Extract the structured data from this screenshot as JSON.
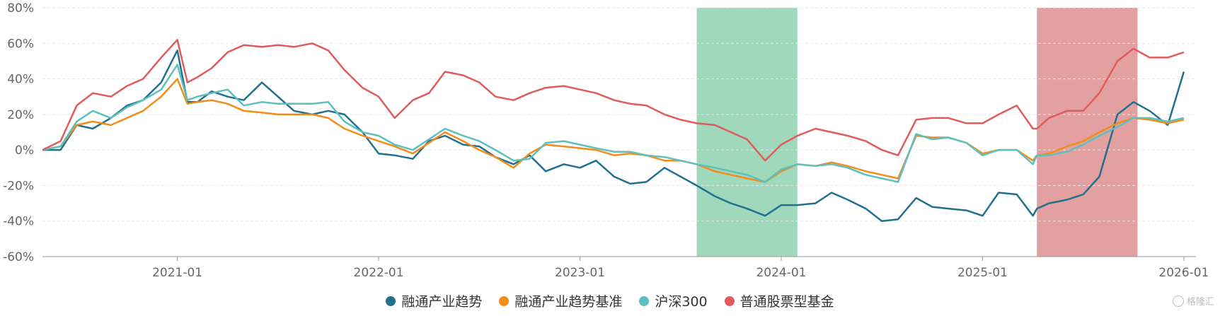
{
  "chart_data": {
    "type": "line",
    "title": "",
    "xlabel": "",
    "ylabel": "",
    "ylim": [
      -60,
      80
    ],
    "yticks": [
      "80%",
      "60%",
      "40%",
      "20%",
      "0%",
      "-20%",
      "-40%",
      "-60%"
    ],
    "ytick_values": [
      80,
      60,
      40,
      20,
      0,
      -20,
      -40,
      -60
    ],
    "xticks": [
      "2021-01",
      "2022-01",
      "2023-01",
      "2024-01",
      "2025-01",
      "2026-01"
    ],
    "xtick_values": [
      2021.0,
      2022.0,
      2023.0,
      2024.0,
      2025.0,
      2026.0
    ],
    "x_range": [
      2020.33,
      2026.06
    ],
    "grid": true,
    "legend_position": "bottom",
    "shaded_regions": [
      {
        "from": 2023.58,
        "to": 2024.08,
        "color": "#8fd1b0"
      },
      {
        "from": 2025.27,
        "to": 2025.77,
        "color": "#de8f8f"
      }
    ],
    "x": [
      2020.33,
      2020.42,
      2020.5,
      2020.58,
      2020.67,
      2020.75,
      2020.83,
      2020.92,
      2021.0,
      2021.05,
      2021.1,
      2021.17,
      2021.25,
      2021.33,
      2021.42,
      2021.5,
      2021.58,
      2021.67,
      2021.75,
      2021.83,
      2021.92,
      2022.0,
      2022.08,
      2022.17,
      2022.25,
      2022.33,
      2022.42,
      2022.5,
      2022.58,
      2022.67,
      2022.75,
      2022.83,
      2022.92,
      2023.0,
      2023.08,
      2023.17,
      2023.25,
      2023.33,
      2023.42,
      2023.5,
      2023.58,
      2023.67,
      2023.75,
      2023.83,
      2023.92,
      2024.0,
      2024.08,
      2024.17,
      2024.25,
      2024.33,
      2024.42,
      2024.5,
      2024.58,
      2024.67,
      2024.75,
      2024.83,
      2024.92,
      2025.0,
      2025.08,
      2025.17,
      2025.25,
      2025.27,
      2025.33,
      2025.42,
      2025.5,
      2025.58,
      2025.67,
      2025.75,
      2025.83,
      2025.92,
      2026.0
    ],
    "series": [
      {
        "name": "融通产业趋势",
        "color": "#22708f",
        "values": [
          0,
          0,
          14,
          12,
          18,
          25,
          28,
          38,
          56,
          27,
          27,
          33,
          30,
          28,
          38,
          30,
          22,
          20,
          22,
          20,
          10,
          -2,
          -3,
          -5,
          5,
          8,
          3,
          2,
          -4,
          -8,
          -3,
          -12,
          -8,
          -10,
          -6,
          -15,
          -19,
          -18,
          -10,
          -15,
          -20,
          -26,
          -30,
          -33,
          -37,
          -31,
          -31,
          -30,
          -24,
          -28,
          -33,
          -40,
          -39,
          -27,
          -32,
          -33,
          -34,
          -37,
          -24,
          -25,
          -37,
          -33,
          -30,
          -28,
          -25,
          -15,
          20,
          27,
          22,
          14,
          44
        ],
        "label_series": true
      },
      {
        "name": "融通产业趋势基准",
        "color": "#f28c1a",
        "values": [
          0,
          2,
          14,
          16,
          14,
          18,
          22,
          30,
          40,
          26,
          27,
          28,
          26,
          22,
          21,
          20,
          20,
          20,
          18,
          12,
          8,
          5,
          2,
          -2,
          4,
          10,
          5,
          0,
          -4,
          -10,
          -2,
          3,
          2,
          1,
          0,
          -3,
          -2,
          -3,
          -6,
          -6,
          -8,
          -12,
          -14,
          -16,
          -18,
          -12,
          -8,
          -9,
          -7,
          -9,
          -12,
          -14,
          -16,
          8,
          7,
          7,
          4,
          -2,
          0,
          0,
          -6,
          -3,
          -2,
          2,
          5,
          10,
          15,
          18,
          17,
          15,
          17
        ]
      },
      {
        "name": "沪深300",
        "color": "#5ebfbf",
        "values": [
          0,
          2,
          16,
          22,
          18,
          24,
          28,
          34,
          48,
          28,
          30,
          32,
          34,
          25,
          27,
          26,
          26,
          26,
          27,
          16,
          10,
          8,
          3,
          0,
          6,
          12,
          8,
          5,
          0,
          -6,
          -5,
          4,
          5,
          3,
          1,
          -1,
          -1,
          -3,
          -4,
          -6,
          -8,
          -10,
          -12,
          -14,
          -18,
          -11,
          -8,
          -9,
          -8,
          -10,
          -14,
          -16,
          -18,
          9,
          6,
          7,
          4,
          -3,
          0,
          0,
          -8,
          -3,
          -3,
          -1,
          3,
          8,
          13,
          18,
          18,
          16,
          18
        ]
      },
      {
        "name": "普通股票型基金",
        "color": "#e05c5c",
        "values": [
          0,
          5,
          25,
          32,
          30,
          36,
          40,
          52,
          62,
          38,
          41,
          46,
          55,
          59,
          58,
          59,
          58,
          60,
          56,
          45,
          35,
          30,
          18,
          28,
          32,
          44,
          42,
          38,
          30,
          28,
          32,
          35,
          36,
          34,
          32,
          28,
          26,
          25,
          20,
          17,
          15,
          14,
          10,
          6,
          -6,
          3,
          8,
          12,
          10,
          8,
          5,
          0,
          -3,
          17,
          18,
          18,
          15,
          15,
          20,
          25,
          12,
          12,
          18,
          22,
          22,
          32,
          50,
          57,
          52,
          52,
          55
        ]
      }
    ]
  },
  "watermark": {
    "text": "格隆汇"
  }
}
